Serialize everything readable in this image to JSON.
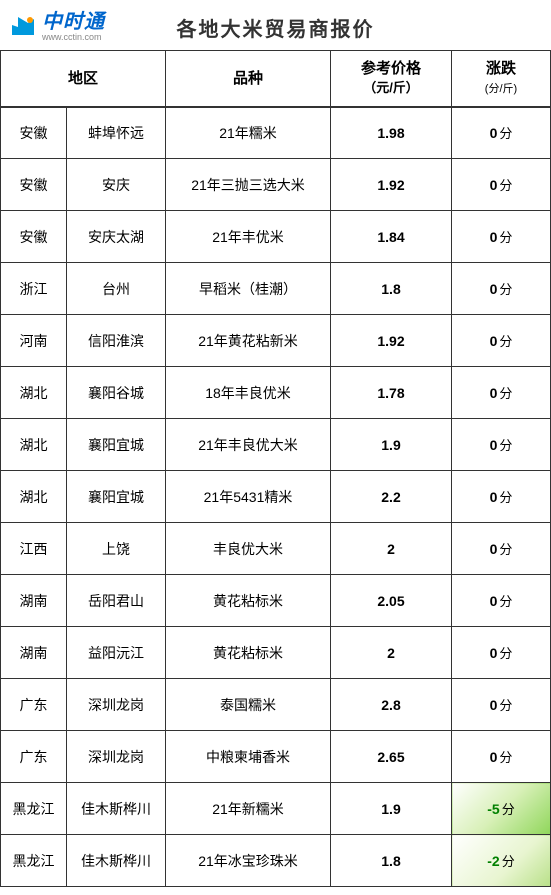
{
  "logo": {
    "name": "中时通",
    "url": "www.cctin.com"
  },
  "title": "各地大米贸易商报价",
  "columns": {
    "region": "地区",
    "variety": "品种",
    "price": "参考价格",
    "price_unit": "（元/斤）",
    "change": "涨跌",
    "change_unit": "(分/斤)"
  },
  "unit_fen": "分",
  "rows": [
    {
      "prov": "安徽",
      "city": "蚌埠怀远",
      "variety": "21年糯米",
      "price": "1.98",
      "change": 0
    },
    {
      "prov": "安徽",
      "city": "安庆",
      "variety": "21年三抛三选大米",
      "price": "1.92",
      "change": 0
    },
    {
      "prov": "安徽",
      "city": "安庆太湖",
      "variety": "21年丰优米",
      "price": "1.84",
      "change": 0
    },
    {
      "prov": "浙江",
      "city": "台州",
      "variety": "早稻米（桂潮）",
      "price": "1.8",
      "change": 0
    },
    {
      "prov": "河南",
      "city": "信阳淮滨",
      "variety": "21年黄花粘新米",
      "price": "1.92",
      "change": 0
    },
    {
      "prov": "湖北",
      "city": "襄阳谷城",
      "variety": "18年丰良优米",
      "price": "1.78",
      "change": 0
    },
    {
      "prov": "湖北",
      "city": "襄阳宜城",
      "variety": "21年丰良优大米",
      "price": "1.9",
      "change": 0
    },
    {
      "prov": "湖北",
      "city": "襄阳宜城",
      "variety": "21年5431精米",
      "price": "2.2",
      "change": 0
    },
    {
      "prov": "江西",
      "city": "上饶",
      "variety": "丰良优大米",
      "price": "2",
      "change": 0
    },
    {
      "prov": "湖南",
      "city": "岳阳君山",
      "variety": "黄花粘标米",
      "price": "2.05",
      "change": 0
    },
    {
      "prov": "湖南",
      "city": "益阳沅江",
      "variety": "黄花粘标米",
      "price": "2",
      "change": 0
    },
    {
      "prov": "广东",
      "city": "深圳龙岗",
      "variety": "泰国糯米",
      "price": "2.8",
      "change": 0
    },
    {
      "prov": "广东",
      "city": "深圳龙岗",
      "variety": "中粮柬埔香米",
      "price": "2.65",
      "change": 0
    },
    {
      "prov": "黑龙江",
      "city": "佳木斯桦川",
      "variety": "21年新糯米",
      "price": "1.9",
      "change": -5
    },
    {
      "prov": "黑龙江",
      "city": "佳木斯桦川",
      "variety": "21年冰宝珍珠米",
      "price": "1.8",
      "change": -2
    }
  ],
  "colors": {
    "border": "#333333",
    "text": "#000000",
    "neg_text": "#008000",
    "logo_blue": "#0066cc",
    "logo_orange": "#ff9900"
  }
}
